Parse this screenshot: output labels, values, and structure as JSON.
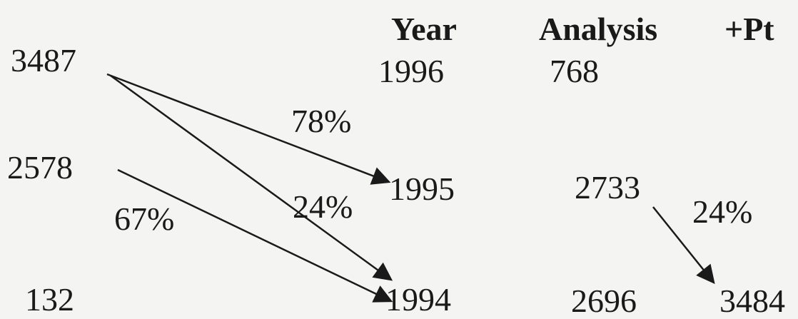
{
  "header": {
    "year": "Year",
    "analysis": "Analysis",
    "pt": "+Pt"
  },
  "left": [
    "3487",
    "2578",
    "132"
  ],
  "years": [
    "1996",
    "1995",
    "1994"
  ],
  "analysis": [
    "768",
    "2733",
    "2696"
  ],
  "pt": "3484",
  "percentages": {
    "p3487_to_1995": "78%",
    "p3487_to_1994": "24%",
    "p2578_to_1994": "67%",
    "p2733_to_3484": "24%"
  }
}
